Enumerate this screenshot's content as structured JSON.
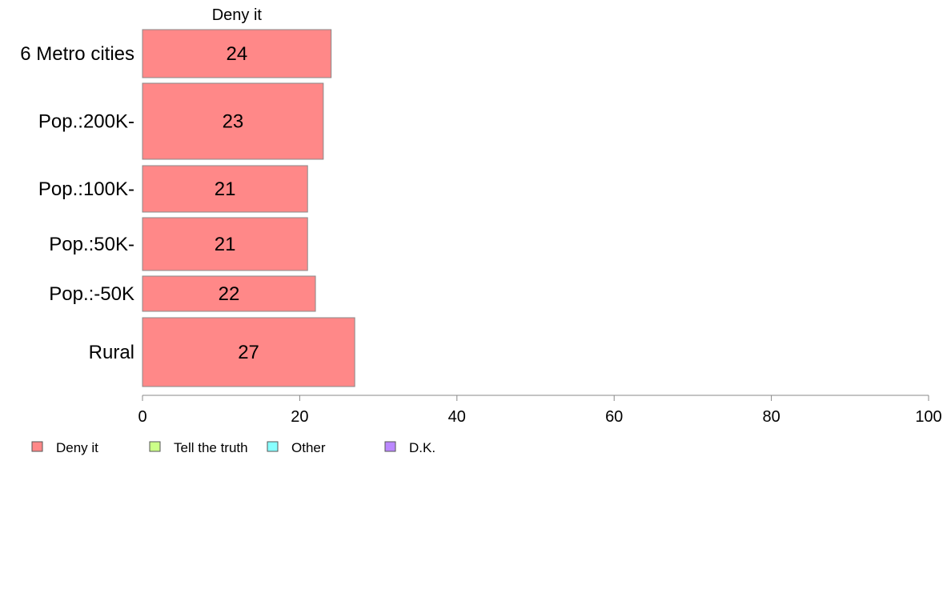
{
  "chart_data": {
    "type": "bar",
    "orientation": "horizontal",
    "stacked": true,
    "categories": [
      "6 Metro cities",
      "Pop.:200K-",
      "Pop.:100K-",
      "Pop.:50K-",
      "Pop.:-50K",
      "Rural"
    ],
    "series": [
      {
        "name": "Deny it",
        "values": [
          24,
          23,
          21,
          21,
          22,
          27
        ],
        "color": "#ff8888"
      }
    ],
    "segment_title": "Deny it",
    "legend": [
      {
        "name": "Deny it",
        "color": "#ff8888"
      },
      {
        "name": "Tell the truth",
        "color": "#ccff88"
      },
      {
        "name": "Other",
        "color": "#88ffff"
      },
      {
        "name": "D.K.",
        "color": "#bb88ff"
      }
    ],
    "xlim": [
      0,
      100
    ],
    "xticks": [
      0,
      20,
      40,
      60,
      80,
      100
    ],
    "grid": false,
    "legend_position": "bottom-left"
  }
}
